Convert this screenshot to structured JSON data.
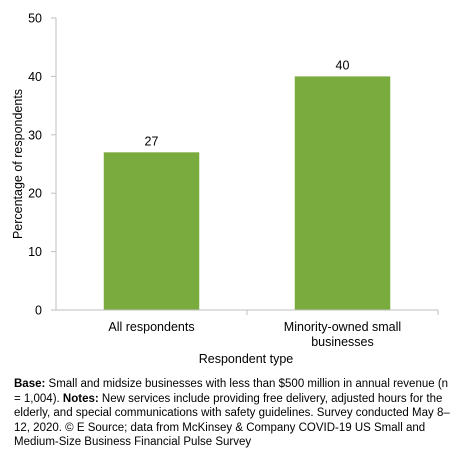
{
  "chart_data": {
    "type": "bar",
    "categories": [
      "All respondents",
      "Minority-owned small businesses"
    ],
    "category_label_lines": [
      [
        "All respondents"
      ],
      [
        "Minority-owned small",
        "businesses"
      ]
    ],
    "values": [
      27,
      40
    ],
    "data_labels": [
      "27",
      "40"
    ],
    "xlabel": "Respondent type",
    "ylabel": "Percentage of respondents",
    "ylim": [
      0,
      50
    ],
    "yticks": [
      0,
      10,
      20,
      30,
      40,
      50
    ],
    "grid": false,
    "bar_color": "#7aab3f"
  },
  "footnote": {
    "base_label": "Base:",
    "base_text": " Small and midsize businesses with less than $500 million in annual revenue (n = 1,004).",
    "notes_label": "Notes:",
    "notes_text": " New services include providing free delivery, adjusted hours for the elderly, and special communications with safety guidelines. Survey conducted May 8–12, 2020. © E Source; data from McKinsey & Company COVID-19 US Small and Medium-Size Business Financial Pulse Survey"
  }
}
